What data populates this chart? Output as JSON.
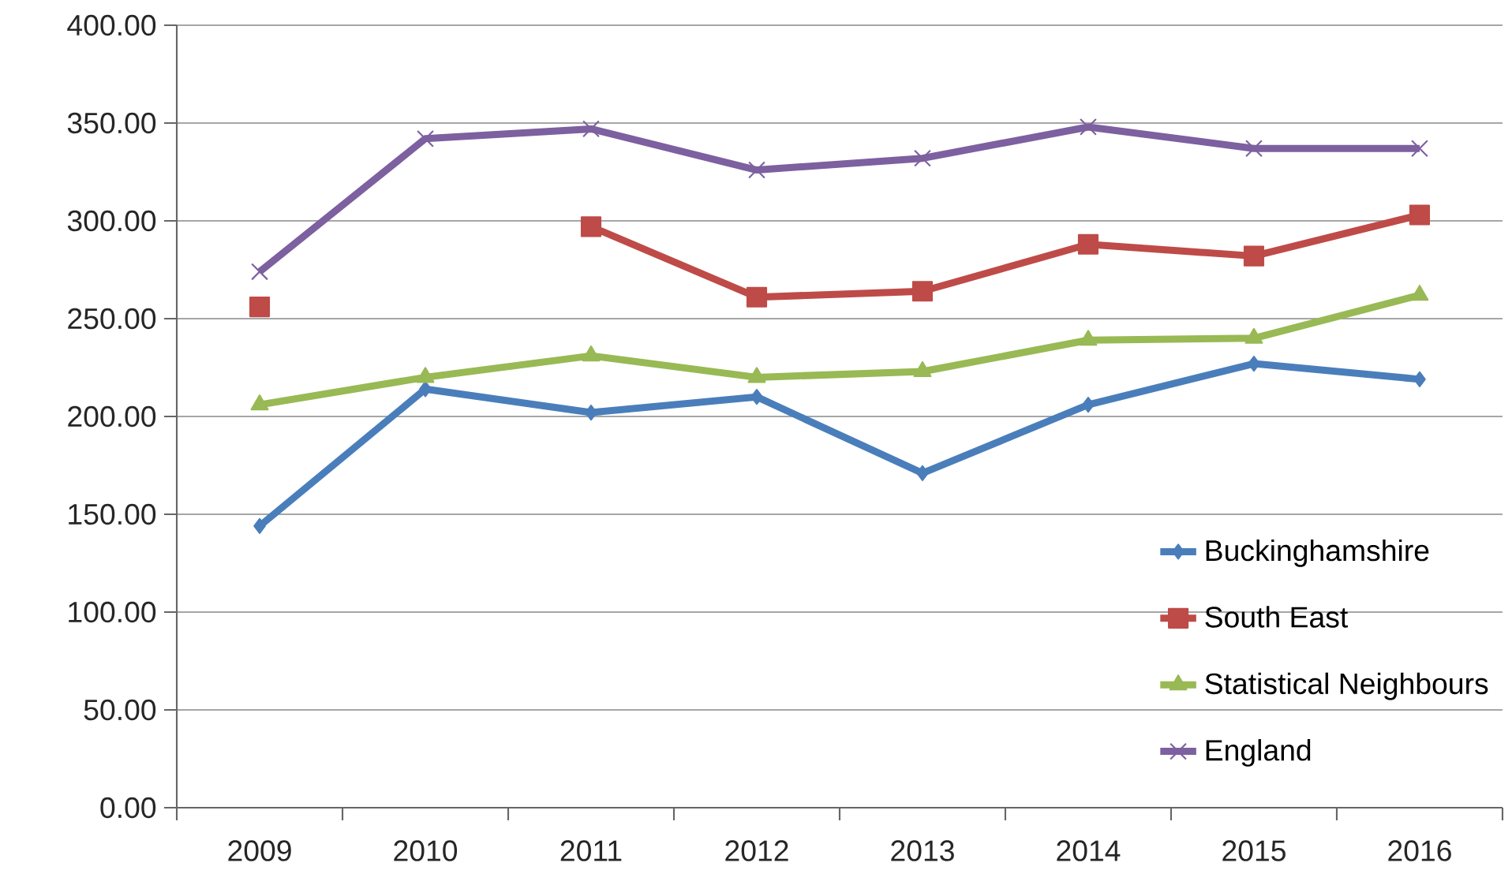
{
  "chart_data": {
    "type": "line",
    "categories": [
      "2009",
      "2010",
      "2011",
      "2012",
      "2013",
      "2014",
      "2015",
      "2016"
    ],
    "series": [
      {
        "name": "Buckinghamshire",
        "color": "#4a7ebb",
        "marker": "diamond",
        "values": [
          144,
          214,
          202,
          210,
          171,
          206,
          227,
          219
        ]
      },
      {
        "name": "South East",
        "color": "#be4b48",
        "marker": "square",
        "values": [
          256,
          null,
          297,
          261,
          264,
          288,
          282,
          303
        ]
      },
      {
        "name": "Statistical Neighbours",
        "color": "#98b954",
        "marker": "triangle",
        "values": [
          206,
          220,
          231,
          220,
          223,
          239,
          240,
          262
        ]
      },
      {
        "name": "England",
        "color": "#7d60a0",
        "marker": "cross",
        "values": [
          274,
          342,
          347,
          326,
          332,
          348,
          337,
          337
        ]
      }
    ],
    "ylim": [
      0,
      400
    ],
    "yticks": [
      {
        "value": 0,
        "label": "0.00"
      },
      {
        "value": 50,
        "label": "50.00"
      },
      {
        "value": 100,
        "label": "100.00"
      },
      {
        "value": 150,
        "label": "150.00"
      },
      {
        "value": 200,
        "label": "200.00"
      },
      {
        "value": 250,
        "label": "250.00"
      },
      {
        "value": 300,
        "label": "300.00"
      },
      {
        "value": 350,
        "label": "350.00"
      },
      {
        "value": 400,
        "label": "400.00"
      }
    ],
    "grid": "y",
    "legend": "bottom right",
    "line_style": "solid"
  }
}
